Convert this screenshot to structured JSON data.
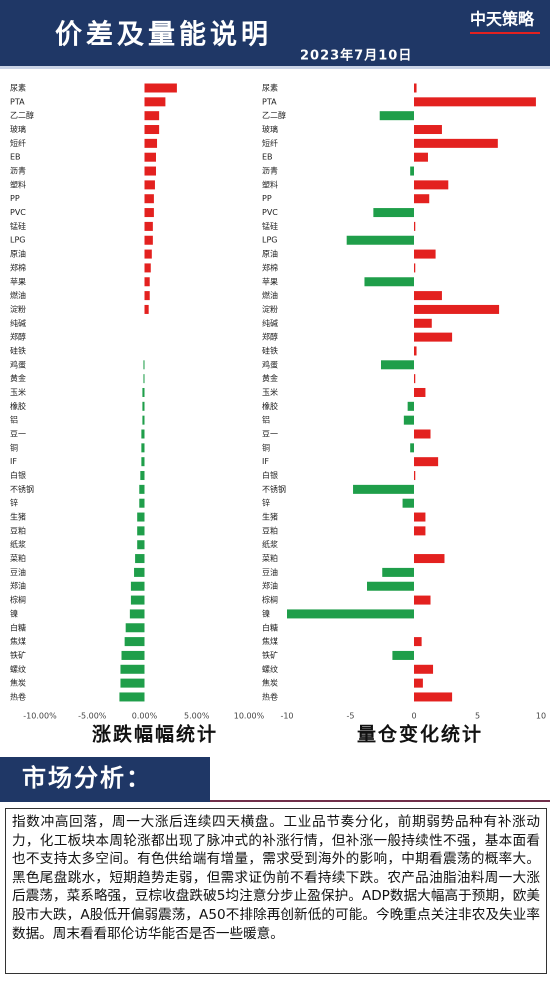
{
  "header": {
    "title": "价差及量能说明",
    "date": "2023年7月10日",
    "logo": "中天策略"
  },
  "chart_data": [
    {
      "type": "bar",
      "orientation": "horizontal",
      "title": "涨跌幅幅统计",
      "categories": [
        "尿素",
        "PTA",
        "乙二醇",
        "玻璃",
        "短纤",
        "EB",
        "沥青",
        "塑料",
        "PP",
        "PVC",
        "锰硅",
        "LPG",
        "原油",
        "郑棉",
        "苹果",
        "燃油",
        "淀粉",
        "纯碱",
        "郑醇",
        "硅铁",
        "鸡蛋",
        "黄金",
        "玉米",
        "橡胶",
        "铝",
        "豆一",
        "铜",
        "IF",
        "白银",
        "不锈钢",
        "锌",
        "生猪",
        "豆粕",
        "纸浆",
        "菜粕",
        "豆油",
        "郑油",
        "棕榈",
        "镍",
        "白糖",
        "焦煤",
        "铁矿",
        "螺纹",
        "焦炭",
        "热卷"
      ],
      "values": [
        3.1,
        2.0,
        1.4,
        1.4,
        1.2,
        1.1,
        1.1,
        1.0,
        0.9,
        0.9,
        0.8,
        0.8,
        0.7,
        0.6,
        0.5,
        0.5,
        0.4,
        0,
        0,
        0,
        -0.1,
        -0.1,
        -0.2,
        -0.2,
        -0.2,
        -0.3,
        -0.3,
        -0.3,
        -0.4,
        -0.5,
        -0.5,
        -0.7,
        -0.7,
        -0.7,
        -0.9,
        -1.0,
        -1.3,
        -1.3,
        -1.4,
        -1.8,
        -1.9,
        -2.2,
        -2.3,
        -2.3,
        -2.4
      ],
      "xlim": [
        -10,
        10
      ],
      "xticks": [
        {
          "value": -10,
          "label": "-10.00%"
        },
        {
          "value": -5,
          "label": "-5.00%"
        },
        {
          "value": 0,
          "label": "0.00%"
        },
        {
          "value": 5,
          "label": "5.00%"
        },
        {
          "value": 10,
          "label": "10.00%"
        }
      ],
      "up_color": "#e3211f",
      "down_color": "#1f9e4a"
    },
    {
      "type": "bar",
      "orientation": "horizontal",
      "title": "量仓变化统计",
      "categories": [
        "尿素",
        "PTA",
        "乙二醇",
        "玻璃",
        "短纤",
        "EB",
        "沥青",
        "塑料",
        "PP",
        "PVC",
        "锰硅",
        "LPG",
        "原油",
        "郑棉",
        "苹果",
        "燃油",
        "淀粉",
        "纯碱",
        "郑醇",
        "硅铁",
        "鸡蛋",
        "黄金",
        "玉米",
        "橡胶",
        "铝",
        "豆一",
        "铜",
        "IF",
        "白银",
        "不锈钢",
        "锌",
        "生猪",
        "豆粕",
        "纸浆",
        "菜粕",
        "豆油",
        "郑油",
        "棕榈",
        "镍",
        "白糖",
        "焦煤",
        "铁矿",
        "螺纹",
        "焦炭",
        "热卷"
      ],
      "values": [
        0.2,
        9.6,
        -2.7,
        2.2,
        6.6,
        1.1,
        -0.3,
        2.7,
        1.2,
        -3.2,
        0.1,
        -5.3,
        1.7,
        0.1,
        -3.9,
        2.2,
        6.7,
        1.4,
        3.0,
        0.2,
        -2.6,
        0.1,
        0.9,
        -0.5,
        -0.8,
        1.3,
        -0.3,
        1.9,
        0.1,
        -4.8,
        -0.9,
        0.9,
        0.9,
        0,
        2.4,
        -2.5,
        -3.7,
        1.3,
        -10.0,
        0,
        0.6,
        -1.7,
        1.5,
        0.7,
        3.0
      ],
      "xlim": [
        -10,
        10
      ],
      "xticks": [
        -10,
        -5,
        0,
        5,
        10
      ],
      "up_color": "#e3211f",
      "down_color": "#1f9e4a"
    }
  ],
  "analysis": {
    "heading": "市场分析：",
    "text": "指数冲高回落，周一大涨后连续四天横盘。工业品节奏分化，前期弱势品种有补涨动力，化工板块本周轮涨都出现了脉冲式的补涨行情，但补涨一般持续性不强，基本面看也不支持太多空间。有色供给端有增量，需求受到海外的影响，中期看震荡的概率大。黑色尾盘跳水，短期趋势走弱，但需求证伪前不看持续下跌。农产品油脂油料周一大涨后震荡，菜系略强，豆棕收盘跌破5均注意分步止盈保护。ADP数据大幅高于预期，欧美股市大跌，A股低开偏弱震荡，A50不排除再创新低的可能。今晚重点关注非农及失业率数据。周末看看耶伦访华能否是否一些暖意。"
  }
}
